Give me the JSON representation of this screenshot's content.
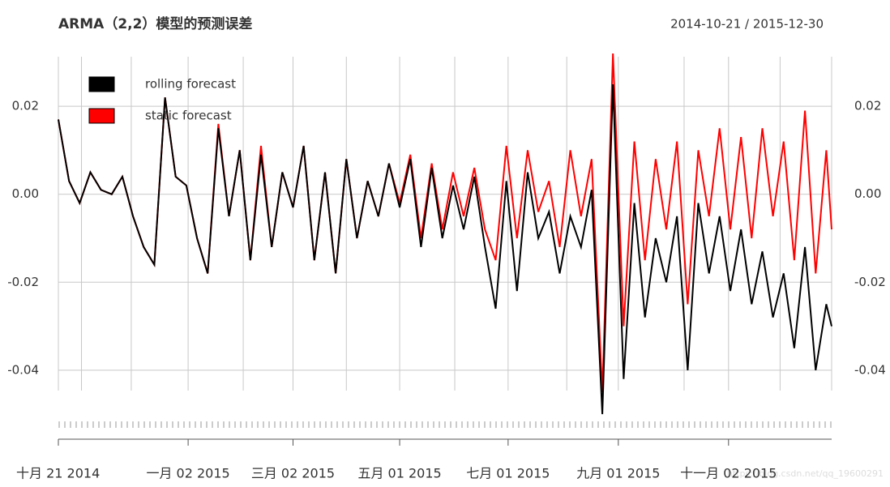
{
  "chart_data": {
    "type": "line",
    "title": "ARMA（2,2）模型的预测误差",
    "subtitle": "2014-10-21 / 2015-12-30",
    "watermark": "https://blog.csdn.net/qq_19600291",
    "legend": "topleft",
    "grid": true,
    "ylim": [
      -0.052,
      0.032
    ],
    "yticks": [
      0.02,
      {
        "value": 0,
        "label": "0.00"
      },
      -0.02,
      -0.04
    ],
    "xlim": [
      "2014-10-21",
      "2015-12-30"
    ],
    "xticks": [
      {
        "value": "2014-10-21",
        "label": "十月 21 2014"
      },
      {
        "value": "2015-01-02",
        "label": "一月 02 2015"
      },
      {
        "value": "2015-03-02",
        "label": "三月 02 2015"
      },
      {
        "value": "2015-05-01",
        "label": "五月 01 2015"
      },
      {
        "value": "2015-07-01",
        "label": "七月 01 2015"
      },
      {
        "value": "2015-09-01",
        "label": "九月 01 2015"
      },
      {
        "value": "2015-11-02",
        "label": "十一月 02 2015"
      }
    ],
    "xminorticks": [
      "2014-11-03",
      "2014-12-01",
      "2015-02-02",
      "2015-04-01",
      "2015-06-01",
      "2015-08-03",
      "2015-10-08",
      "2015-12-01",
      "2015-12-30"
    ],
    "x": [
      "2014-10-21",
      "2014-10-27",
      "2014-11-02",
      "2014-11-08",
      "2014-11-14",
      "2014-11-20",
      "2014-11-26",
      "2014-12-02",
      "2014-12-08",
      "2014-12-14",
      "2014-12-20",
      "2014-12-26",
      "2015-01-01",
      "2015-01-07",
      "2015-01-13",
      "2015-01-19",
      "2015-01-25",
      "2015-01-31",
      "2015-02-06",
      "2015-02-12",
      "2015-02-18",
      "2015-02-24",
      "2015-03-02",
      "2015-03-08",
      "2015-03-14",
      "2015-03-20",
      "2015-03-26",
      "2015-04-01",
      "2015-04-07",
      "2015-04-13",
      "2015-04-19",
      "2015-04-25",
      "2015-05-01",
      "2015-05-07",
      "2015-05-13",
      "2015-05-19",
      "2015-05-25",
      "2015-05-31",
      "2015-06-06",
      "2015-06-12",
      "2015-06-18",
      "2015-06-24",
      "2015-06-30",
      "2015-07-06",
      "2015-07-12",
      "2015-07-18",
      "2015-07-24",
      "2015-07-30",
      "2015-08-05",
      "2015-08-11",
      "2015-08-17",
      "2015-08-23",
      "2015-08-29",
      "2015-09-04",
      "2015-09-10",
      "2015-09-16",
      "2015-09-22",
      "2015-09-28",
      "2015-10-04",
      "2015-10-10",
      "2015-10-16",
      "2015-10-22",
      "2015-10-28",
      "2015-11-03",
      "2015-11-09",
      "2015-11-15",
      "2015-11-21",
      "2015-11-27",
      "2015-12-03",
      "2015-12-09",
      "2015-12-15",
      "2015-12-21",
      "2015-12-27",
      "2015-12-30"
    ],
    "series": [
      {
        "name": "static forecast",
        "color": "#ff0000",
        "values": [
          0.017,
          0.003,
          -0.002,
          0.005,
          0.001,
          0,
          0.004,
          -0.005,
          -0.012,
          -0.016,
          0.022,
          0.004,
          0.002,
          -0.01,
          -0.018,
          0.016,
          -0.005,
          0.01,
          -0.015,
          0.011,
          -0.012,
          0.005,
          -0.003,
          0.011,
          -0.015,
          0.005,
          -0.018,
          0.008,
          -0.01,
          0.003,
          -0.005,
          0.007,
          -0.002,
          0.009,
          -0.01,
          0.007,
          -0.008,
          0.005,
          -0.005,
          0.006,
          -0.008,
          -0.015,
          0.011,
          -0.01,
          0.01,
          -0.004,
          0.003,
          -0.012,
          0.01,
          -0.005,
          0.008,
          -0.045,
          0.032,
          -0.03,
          0.012,
          -0.015,
          0.008,
          -0.008,
          0.012,
          -0.025,
          0.01,
          -0.005,
          0.015,
          -0.008,
          0.013,
          -0.01,
          0.015,
          -0.005,
          0.012,
          -0.015,
          0.019,
          -0.018,
          0.01,
          -0.008
        ]
      },
      {
        "name": "rolling forecast",
        "color": "#000000",
        "values": [
          0.017,
          0.003,
          -0.002,
          0.005,
          0.001,
          0,
          0.004,
          -0.005,
          -0.012,
          -0.016,
          0.022,
          0.004,
          0.002,
          -0.01,
          -0.018,
          0.015,
          -0.005,
          0.01,
          -0.015,
          0.009,
          -0.012,
          0.005,
          -0.003,
          0.011,
          -0.015,
          0.005,
          -0.018,
          0.008,
          -0.01,
          0.003,
          -0.005,
          0.007,
          -0.003,
          0.008,
          -0.012,
          0.006,
          -0.01,
          0.002,
          -0.008,
          0.004,
          -0.012,
          -0.026,
          0.003,
          -0.022,
          0.005,
          -0.01,
          -0.004,
          -0.018,
          -0.005,
          -0.012,
          0.001,
          -0.05,
          0.025,
          -0.042,
          -0.002,
          -0.028,
          -0.01,
          -0.02,
          -0.005,
          -0.04,
          -0.002,
          -0.018,
          -0.005,
          -0.022,
          -0.008,
          -0.025,
          -0.013,
          -0.028,
          -0.018,
          -0.035,
          -0.012,
          -0.04,
          -0.025,
          -0.03
        ]
      }
    ]
  }
}
